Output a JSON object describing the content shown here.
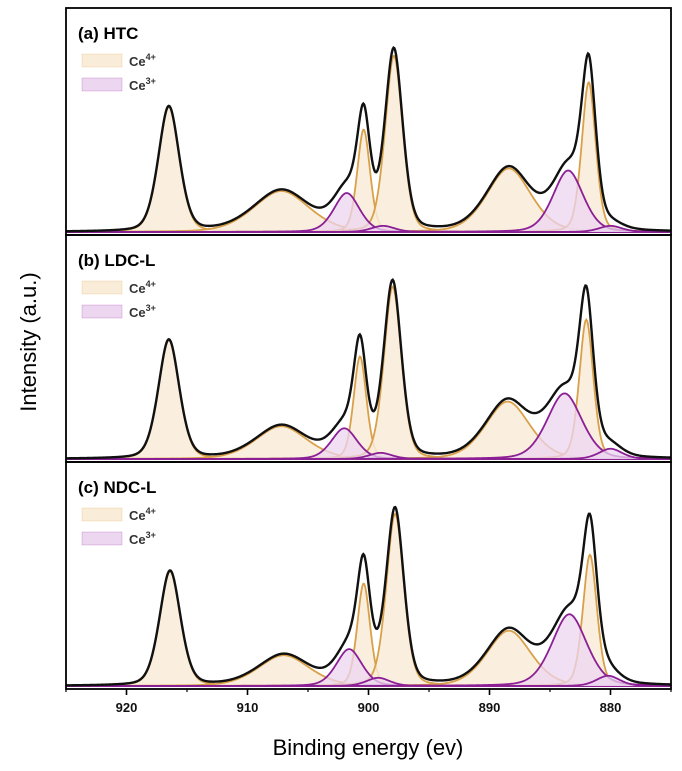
{
  "chart_data": {
    "type": "line",
    "xlabel": "Binding energy (ev)",
    "ylabel": "Intensity (a.u.)",
    "xlim": [
      925,
      875
    ],
    "x_reversed": true,
    "x_ticks": [
      920,
      910,
      900,
      890,
      880
    ],
    "colors": {
      "envelope": "#111111",
      "ce4_line": "#d9a04a",
      "ce4_fill": "#f9ecd8",
      "ce3_line": "#8b1f94",
      "ce3_fill": "#ecd6f0"
    },
    "panels": [
      {
        "title": "(a) HTC",
        "legend": [
          {
            "base": "Ce",
            "sup": "4+",
            "kind": "ce4"
          },
          {
            "base": "Ce",
            "sup": "3+",
            "kind": "ce3"
          }
        ],
        "ce4_peaks": [
          {
            "center": 916.5,
            "height": 0.61,
            "width": 0.9
          },
          {
            "center": 907.2,
            "height": 0.2,
            "width": 2.4
          },
          {
            "center": 900.4,
            "height": 0.5,
            "width": 0.55
          },
          {
            "center": 897.9,
            "height": 0.86,
            "width": 0.75
          },
          {
            "center": 888.4,
            "height": 0.31,
            "width": 1.9
          },
          {
            "center": 881.8,
            "height": 0.73,
            "width": 0.6
          }
        ],
        "ce3_peaks": [
          {
            "center": 901.8,
            "height": 0.19,
            "width": 1.1
          },
          {
            "center": 898.8,
            "height": 0.03,
            "width": 1.0
          },
          {
            "center": 883.5,
            "height": 0.3,
            "width": 1.3
          },
          {
            "center": 880.0,
            "height": 0.03,
            "width": 1.0
          }
        ]
      },
      {
        "title": "(b) LDC-L",
        "legend": [
          {
            "base": "Ce",
            "sup": "4+",
            "kind": "ce4"
          },
          {
            "base": "Ce",
            "sup": "3+",
            "kind": "ce3"
          }
        ],
        "ce4_peaks": [
          {
            "center": 916.5,
            "height": 0.58,
            "width": 0.9
          },
          {
            "center": 907.2,
            "height": 0.16,
            "width": 2.2
          },
          {
            "center": 900.7,
            "height": 0.5,
            "width": 0.55
          },
          {
            "center": 898.0,
            "height": 0.84,
            "width": 0.75
          },
          {
            "center": 888.5,
            "height": 0.28,
            "width": 1.9
          },
          {
            "center": 882.0,
            "height": 0.68,
            "width": 0.6
          }
        ],
        "ce3_peaks": [
          {
            "center": 902.0,
            "height": 0.15,
            "width": 1.1
          },
          {
            "center": 899.0,
            "height": 0.03,
            "width": 1.0
          },
          {
            "center": 883.8,
            "height": 0.32,
            "width": 1.5
          },
          {
            "center": 880.0,
            "height": 0.05,
            "width": 1.0
          }
        ]
      },
      {
        "title": "(c) NDC-L",
        "legend": [
          {
            "base": "Ce",
            "sup": "4+",
            "kind": "ce4"
          },
          {
            "base": "Ce",
            "sup": "3+",
            "kind": "ce3"
          }
        ],
        "ce4_peaks": [
          {
            "center": 916.4,
            "height": 0.56,
            "width": 0.9
          },
          {
            "center": 907.0,
            "height": 0.15,
            "width": 2.2
          },
          {
            "center": 900.4,
            "height": 0.5,
            "width": 0.55
          },
          {
            "center": 897.8,
            "height": 0.84,
            "width": 0.75
          },
          {
            "center": 888.4,
            "height": 0.27,
            "width": 1.9
          },
          {
            "center": 881.7,
            "height": 0.64,
            "width": 0.6
          }
        ],
        "ce3_peaks": [
          {
            "center": 901.6,
            "height": 0.18,
            "width": 1.1
          },
          {
            "center": 899.2,
            "height": 0.04,
            "width": 1.0
          },
          {
            "center": 883.4,
            "height": 0.35,
            "width": 1.5
          },
          {
            "center": 880.2,
            "height": 0.05,
            "width": 1.0
          }
        ]
      }
    ]
  }
}
